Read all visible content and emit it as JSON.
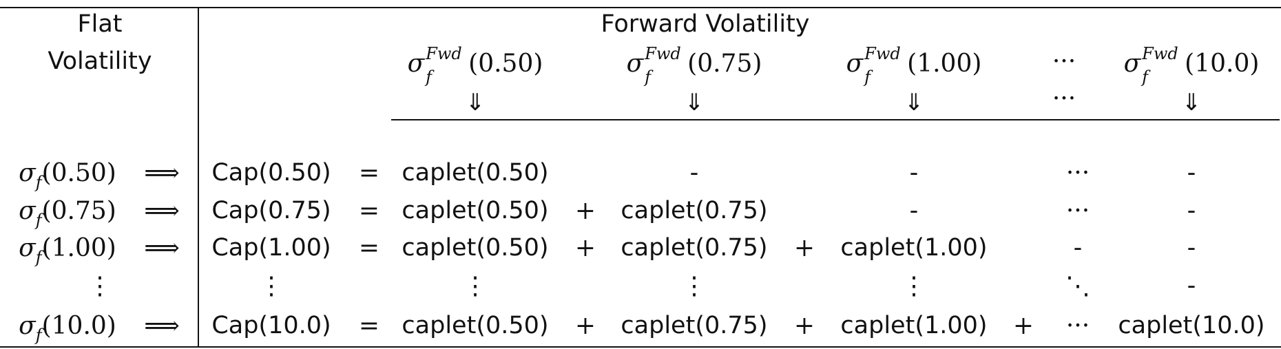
{
  "header": {
    "flat_line1": "Flat",
    "flat_line2": "Volatility",
    "forward_title": "Forward Volatility"
  },
  "symbols": {
    "sigma": "σ",
    "sub_f": "f",
    "sup_fwd": "Fwd",
    "down_double_arrow": "⇓",
    "implies_arrow": "⟹",
    "equals": "=",
    "plus": "+",
    "hdots": "···",
    "vdots": "⋮",
    "ddots": "⋱",
    "dash": "-"
  },
  "maturities": [
    "(0.50)",
    "(0.75)",
    "(1.00)",
    "(10.0)"
  ],
  "forward_columns": [
    "(0.50)",
    "(0.75)",
    "(1.00)",
    "(10.0)"
  ],
  "rows": [
    {
      "flat_arg": "(0.50)",
      "cap": "Cap(0.50)",
      "cells": [
        "caplet(0.50)",
        "-",
        "-",
        "···",
        "-"
      ],
      "ops": [
        "",
        "",
        "",
        ""
      ]
    },
    {
      "flat_arg": "(0.75)",
      "cap": "Cap(0.75)",
      "cells": [
        "caplet(0.50)",
        "caplet(0.75)",
        "-",
        "···",
        "-"
      ],
      "ops": [
        "+",
        "",
        "",
        ""
      ]
    },
    {
      "flat_arg": "(1.00)",
      "cap": "Cap(1.00)",
      "cells": [
        "caplet(0.50)",
        "caplet(0.75)",
        "caplet(1.00)",
        "-",
        "-"
      ],
      "ops": [
        "+",
        "+",
        "",
        ""
      ]
    },
    {
      "flat_arg": "",
      "cap": "⋮",
      "cells": [
        "⋮",
        "⋮",
        "⋮",
        "⋱",
        "-"
      ],
      "ops": [
        "",
        "",
        "",
        ""
      ]
    },
    {
      "flat_arg": "(10.0)",
      "cap": "Cap(10.0)",
      "cells": [
        "caplet(0.50)",
        "caplet(0.75)",
        "caplet(1.00)",
        "···",
        "caplet(10.0)"
      ],
      "ops": [
        "+",
        "+",
        "+",
        ""
      ]
    }
  ]
}
